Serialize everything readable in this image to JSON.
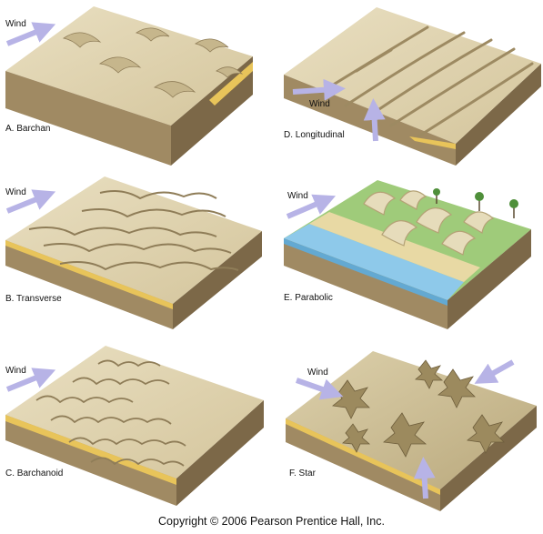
{
  "panels": [
    {
      "id": "barchan",
      "label": "A. Barchan",
      "wind_label": "Wind"
    },
    {
      "id": "longitudinal",
      "label": "D. Longitudinal",
      "wind_label": "Wind"
    },
    {
      "id": "transverse",
      "label": "B. Transverse",
      "wind_label": "Wind"
    },
    {
      "id": "parabolic",
      "label": "E. Parabolic",
      "wind_label": "Wind"
    },
    {
      "id": "barchanoid",
      "label": "C. Barchanoid",
      "wind_label": "Wind"
    },
    {
      "id": "star",
      "label": "F. Star",
      "wind_label": "Wind"
    }
  ],
  "footer": {
    "copyright": "Copyright © 2006 Pearson Prentice Hall, Inc."
  },
  "colors": {
    "sand_top": "#e2d6b4",
    "sand_shadow": "#b8a77e",
    "block_front": "#a08a63",
    "block_side": "#7c6848",
    "sand_layer": "#e8c45a",
    "arrow": "#b7b3e6",
    "vegetation": "#9fcb7a",
    "water": "#8ec9ea"
  }
}
